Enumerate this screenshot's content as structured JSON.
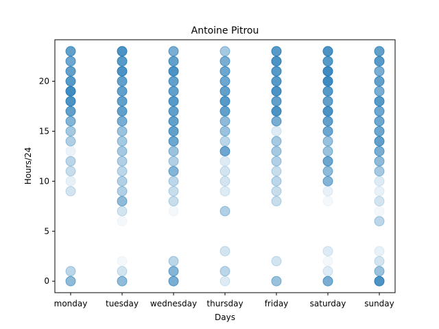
{
  "chart_data": {
    "type": "scatter",
    "title": "Antoine Pitrou",
    "xlabel": "Days",
    "ylabel": "Hours/24",
    "categories": [
      "monday",
      "tuesday",
      "wednesday",
      "thursday",
      "friday",
      "saturday",
      "sunday"
    ],
    "y_ticks": [
      0,
      5,
      10,
      15,
      20
    ],
    "ylim": [
      -1.15,
      24.15
    ],
    "grid": false,
    "marker_color": "#1f77b4",
    "points": [
      {
        "day": "monday",
        "hour": 0,
        "alpha": 0.5
      },
      {
        "day": "monday",
        "hour": 1,
        "alpha": 0.3
      },
      {
        "day": "monday",
        "hour": 9,
        "alpha": 0.2
      },
      {
        "day": "monday",
        "hour": 10,
        "alpha": 0.1
      },
      {
        "day": "monday",
        "hour": 11,
        "alpha": 0.25
      },
      {
        "day": "monday",
        "hour": 12,
        "alpha": 0.3
      },
      {
        "day": "monday",
        "hour": 13,
        "alpha": 0.08
      },
      {
        "day": "monday",
        "hour": 14,
        "alpha": 0.35
      },
      {
        "day": "monday",
        "hour": 15,
        "alpha": 0.4
      },
      {
        "day": "monday",
        "hour": 16,
        "alpha": 0.55
      },
      {
        "day": "monday",
        "hour": 17,
        "alpha": 0.7
      },
      {
        "day": "monday",
        "hour": 18,
        "alpha": 0.8
      },
      {
        "day": "monday",
        "hour": 19,
        "alpha": 0.85
      },
      {
        "day": "monday",
        "hour": 20,
        "alpha": 0.75
      },
      {
        "day": "monday",
        "hour": 21,
        "alpha": 0.7
      },
      {
        "day": "monday",
        "hour": 22,
        "alpha": 0.65
      },
      {
        "day": "monday",
        "hour": 23,
        "alpha": 0.7
      },
      {
        "day": "tuesday",
        "hour": 0,
        "alpha": 0.5
      },
      {
        "day": "tuesday",
        "hour": 1,
        "alpha": 0.2
      },
      {
        "day": "tuesday",
        "hour": 2,
        "alpha": 0.05
      },
      {
        "day": "tuesday",
        "hour": 6,
        "alpha": 0.05
      },
      {
        "day": "tuesday",
        "hour": 7,
        "alpha": 0.2
      },
      {
        "day": "tuesday",
        "hour": 8,
        "alpha": 0.5
      },
      {
        "day": "tuesday",
        "hour": 9,
        "alpha": 0.35
      },
      {
        "day": "tuesday",
        "hour": 10,
        "alpha": 0.35
      },
      {
        "day": "tuesday",
        "hour": 11,
        "alpha": 0.3
      },
      {
        "day": "tuesday",
        "hour": 12,
        "alpha": 0.35
      },
      {
        "day": "tuesday",
        "hour": 13,
        "alpha": 0.4
      },
      {
        "day": "tuesday",
        "hour": 14,
        "alpha": 0.4
      },
      {
        "day": "tuesday",
        "hour": 15,
        "alpha": 0.45
      },
      {
        "day": "tuesday",
        "hour": 16,
        "alpha": 0.6
      },
      {
        "day": "tuesday",
        "hour": 17,
        "alpha": 0.7
      },
      {
        "day": "tuesday",
        "hour": 18,
        "alpha": 0.7
      },
      {
        "day": "tuesday",
        "hour": 19,
        "alpha": 0.7
      },
      {
        "day": "tuesday",
        "hour": 20,
        "alpha": 0.7
      },
      {
        "day": "tuesday",
        "hour": 21,
        "alpha": 0.8
      },
      {
        "day": "tuesday",
        "hour": 22,
        "alpha": 0.75
      },
      {
        "day": "tuesday",
        "hour": 23,
        "alpha": 0.8
      },
      {
        "day": "wednesday",
        "hour": 0,
        "alpha": 0.6
      },
      {
        "day": "wednesday",
        "hour": 1,
        "alpha": 0.55
      },
      {
        "day": "wednesday",
        "hour": 2,
        "alpha": 0.3
      },
      {
        "day": "wednesday",
        "hour": 7,
        "alpha": 0.05
      },
      {
        "day": "wednesday",
        "hour": 8,
        "alpha": 0.25
      },
      {
        "day": "wednesday",
        "hour": 9,
        "alpha": 0.25
      },
      {
        "day": "wednesday",
        "hour": 10,
        "alpha": 0.3
      },
      {
        "day": "wednesday",
        "hour": 11,
        "alpha": 0.55
      },
      {
        "day": "wednesday",
        "hour": 12,
        "alpha": 0.35
      },
      {
        "day": "wednesday",
        "hour": 13,
        "alpha": 0.45
      },
      {
        "day": "wednesday",
        "hour": 14,
        "alpha": 0.65
      },
      {
        "day": "wednesday",
        "hour": 15,
        "alpha": 0.7
      },
      {
        "day": "wednesday",
        "hour": 16,
        "alpha": 0.7
      },
      {
        "day": "wednesday",
        "hour": 17,
        "alpha": 0.7
      },
      {
        "day": "wednesday",
        "hour": 18,
        "alpha": 0.75
      },
      {
        "day": "wednesday",
        "hour": 19,
        "alpha": 0.7
      },
      {
        "day": "wednesday",
        "hour": 20,
        "alpha": 0.7
      },
      {
        "day": "wednesday",
        "hour": 21,
        "alpha": 0.8
      },
      {
        "day": "wednesday",
        "hour": 22,
        "alpha": 0.7
      },
      {
        "day": "wednesday",
        "hour": 23,
        "alpha": 0.6
      },
      {
        "day": "thursday",
        "hour": 0,
        "alpha": 0.15
      },
      {
        "day": "thursday",
        "hour": 1,
        "alpha": 0.3
      },
      {
        "day": "thursday",
        "hour": 3,
        "alpha": 0.2
      },
      {
        "day": "thursday",
        "hour": 7,
        "alpha": 0.35
      },
      {
        "day": "thursday",
        "hour": 9,
        "alpha": 0.15
      },
      {
        "day": "thursday",
        "hour": 10,
        "alpha": 0.2
      },
      {
        "day": "thursday",
        "hour": 11,
        "alpha": 0.2
      },
      {
        "day": "thursday",
        "hour": 12,
        "alpha": 0.15
      },
      {
        "day": "thursday",
        "hour": 13,
        "alpha": 0.65
      },
      {
        "day": "thursday",
        "hour": 14,
        "alpha": 0.3
      },
      {
        "day": "thursday",
        "hour": 15,
        "alpha": 0.45
      },
      {
        "day": "thursday",
        "hour": 16,
        "alpha": 0.5
      },
      {
        "day": "thursday",
        "hour": 17,
        "alpha": 0.7
      },
      {
        "day": "thursday",
        "hour": 18,
        "alpha": 0.75
      },
      {
        "day": "thursday",
        "hour": 19,
        "alpha": 0.7
      },
      {
        "day": "thursday",
        "hour": 20,
        "alpha": 0.65
      },
      {
        "day": "thursday",
        "hour": 21,
        "alpha": 0.65
      },
      {
        "day": "thursday",
        "hour": 22,
        "alpha": 0.6
      },
      {
        "day": "thursday",
        "hour": 23,
        "alpha": 0.4
      },
      {
        "day": "friday",
        "hour": 0,
        "alpha": 0.45
      },
      {
        "day": "friday",
        "hour": 2,
        "alpha": 0.2
      },
      {
        "day": "friday",
        "hour": 8,
        "alpha": 0.25
      },
      {
        "day": "friday",
        "hour": 9,
        "alpha": 0.25
      },
      {
        "day": "friday",
        "hour": 10,
        "alpha": 0.3
      },
      {
        "day": "friday",
        "hour": 11,
        "alpha": 0.25
      },
      {
        "day": "friday",
        "hour": 12,
        "alpha": 0.35
      },
      {
        "day": "friday",
        "hour": 13,
        "alpha": 0.4
      },
      {
        "day": "friday",
        "hour": 14,
        "alpha": 0.4
      },
      {
        "day": "friday",
        "hour": 15,
        "alpha": 0.15
      },
      {
        "day": "friday",
        "hour": 16,
        "alpha": 0.6
      },
      {
        "day": "friday",
        "hour": 17,
        "alpha": 0.8
      },
      {
        "day": "friday",
        "hour": 18,
        "alpha": 0.7
      },
      {
        "day": "friday",
        "hour": 19,
        "alpha": 0.8
      },
      {
        "day": "friday",
        "hour": 20,
        "alpha": 0.75
      },
      {
        "day": "friday",
        "hour": 21,
        "alpha": 0.75
      },
      {
        "day": "friday",
        "hour": 22,
        "alpha": 0.8
      },
      {
        "day": "friday",
        "hour": 23,
        "alpha": 0.75
      },
      {
        "day": "saturday",
        "hour": 0,
        "alpha": 0.6
      },
      {
        "day": "saturday",
        "hour": 1,
        "alpha": 0.15
      },
      {
        "day": "saturday",
        "hour": 2,
        "alpha": 0.05
      },
      {
        "day": "saturday",
        "hour": 3,
        "alpha": 0.15
      },
      {
        "day": "saturday",
        "hour": 8,
        "alpha": 0.05
      },
      {
        "day": "saturday",
        "hour": 9,
        "alpha": 0.1
      },
      {
        "day": "saturday",
        "hour": 10,
        "alpha": 0.55
      },
      {
        "day": "saturday",
        "hour": 11,
        "alpha": 0.5
      },
      {
        "day": "saturday",
        "hour": 12,
        "alpha": 0.65
      },
      {
        "day": "saturday",
        "hour": 13,
        "alpha": 0.45
      },
      {
        "day": "saturday",
        "hour": 14,
        "alpha": 0.45
      },
      {
        "day": "saturday",
        "hour": 15,
        "alpha": 0.65
      },
      {
        "day": "saturday",
        "hour": 16,
        "alpha": 0.7
      },
      {
        "day": "saturday",
        "hour": 17,
        "alpha": 0.8
      },
      {
        "day": "saturday",
        "hour": 18,
        "alpha": 0.7
      },
      {
        "day": "saturday",
        "hour": 19,
        "alpha": 0.75
      },
      {
        "day": "saturday",
        "hour": 20,
        "alpha": 0.85
      },
      {
        "day": "saturday",
        "hour": 21,
        "alpha": 0.85
      },
      {
        "day": "saturday",
        "hour": 22,
        "alpha": 0.75
      },
      {
        "day": "saturday",
        "hour": 23,
        "alpha": 0.8
      },
      {
        "day": "sunday",
        "hour": 0,
        "alpha": 0.8
      },
      {
        "day": "sunday",
        "hour": 1,
        "alpha": 0.45
      },
      {
        "day": "sunday",
        "hour": 2,
        "alpha": 0.2
      },
      {
        "day": "sunday",
        "hour": 3,
        "alpha": 0.1
      },
      {
        "day": "sunday",
        "hour": 6,
        "alpha": 0.3
      },
      {
        "day": "sunday",
        "hour": 7,
        "alpha": 0.05
      },
      {
        "day": "sunday",
        "hour": 8,
        "alpha": 0.2
      },
      {
        "day": "sunday",
        "hour": 9,
        "alpha": 0.1
      },
      {
        "day": "sunday",
        "hour": 10,
        "alpha": 0.15
      },
      {
        "day": "sunday",
        "hour": 11,
        "alpha": 0.4
      },
      {
        "day": "sunday",
        "hour": 12,
        "alpha": 0.5
      },
      {
        "day": "sunday",
        "hour": 13,
        "alpha": 0.6
      },
      {
        "day": "sunday",
        "hour": 14,
        "alpha": 0.7
      },
      {
        "day": "sunday",
        "hour": 15,
        "alpha": 0.65
      },
      {
        "day": "sunday",
        "hour": 16,
        "alpha": 0.65
      },
      {
        "day": "sunday",
        "hour": 17,
        "alpha": 0.65
      },
      {
        "day": "sunday",
        "hour": 18,
        "alpha": 0.75
      },
      {
        "day": "sunday",
        "hour": 19,
        "alpha": 0.6
      },
      {
        "day": "sunday",
        "hour": 20,
        "alpha": 0.7
      },
      {
        "day": "sunday",
        "hour": 21,
        "alpha": 0.6
      },
      {
        "day": "sunday",
        "hour": 22,
        "alpha": 0.75
      },
      {
        "day": "sunday",
        "hour": 23,
        "alpha": 0.7
      }
    ]
  }
}
